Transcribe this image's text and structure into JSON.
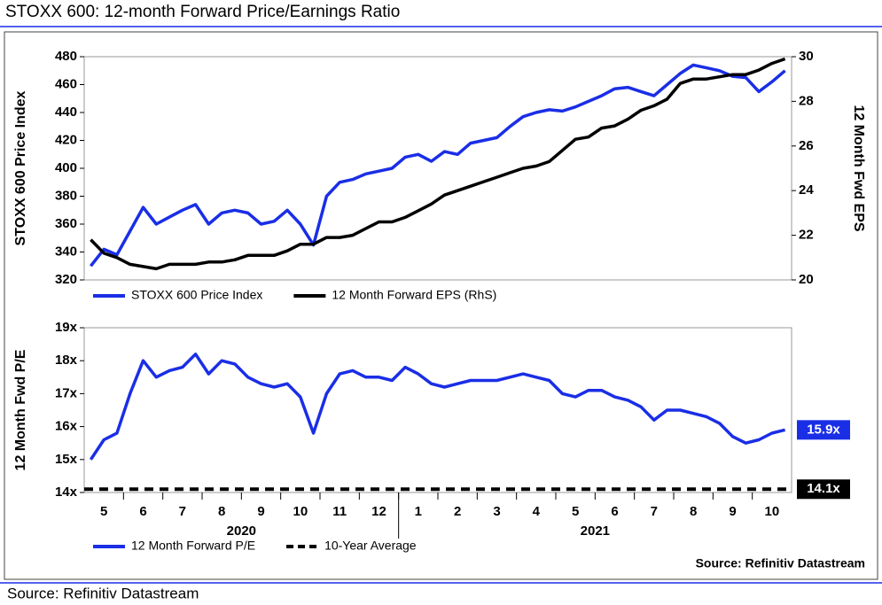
{
  "title": "STOXX 600: 12-month Forward Price/Earnings Ratio",
  "source": "Source: Refinitiv Datastream",
  "chart_data": [
    {
      "type": "line",
      "ylabel": "STOXX 600 Price Index",
      "y2label": "12 Month Fwd EPS",
      "ylim": [
        320,
        480
      ],
      "yticks": [
        320,
        340,
        360,
        380,
        400,
        420,
        440,
        460,
        480
      ],
      "y2lim": [
        20,
        30
      ],
      "y2ticks": [
        20,
        22,
        24,
        26,
        28,
        30
      ],
      "series": [
        {
          "name": "STOXX 600 Price Index",
          "color": "#1a2ee6",
          "values": [
            330,
            342,
            338,
            355,
            372,
            360,
            365,
            370,
            374,
            360,
            368,
            370,
            368,
            360,
            362,
            370,
            360,
            345,
            380,
            390,
            392,
            396,
            398,
            400,
            408,
            410,
            405,
            412,
            410,
            418,
            420,
            422,
            430,
            437,
            440,
            442,
            441,
            444,
            448,
            452,
            457,
            458,
            455,
            452,
            460,
            468,
            474,
            472,
            470,
            466,
            465,
            455,
            462,
            470
          ]
        },
        {
          "name": "12 Month Forward EPS (RhS)",
          "color": "#000000",
          "axis": "y2",
          "values": [
            21.8,
            21.2,
            21.0,
            20.7,
            20.6,
            20.5,
            20.7,
            20.7,
            20.7,
            20.8,
            20.8,
            20.9,
            21.1,
            21.1,
            21.1,
            21.3,
            21.6,
            21.6,
            21.9,
            21.9,
            22.0,
            22.3,
            22.6,
            22.6,
            22.8,
            23.1,
            23.4,
            23.8,
            24.0,
            24.2,
            24.4,
            24.6,
            24.8,
            25.0,
            25.1,
            25.3,
            25.8,
            26.3,
            26.4,
            26.8,
            26.9,
            27.2,
            27.6,
            27.8,
            28.1,
            28.8,
            29.0,
            29.0,
            29.1,
            29.2,
            29.2,
            29.4,
            29.7,
            29.9
          ]
        }
      ]
    },
    {
      "type": "line",
      "ylabel": "12 Month Fwd P/E",
      "ylim": [
        14,
        19
      ],
      "yticks": [
        {
          "value": 14,
          "label": "14x"
        },
        {
          "value": 15,
          "label": "15x"
        },
        {
          "value": 16,
          "label": "16x"
        },
        {
          "value": 17,
          "label": "17x"
        },
        {
          "value": 18,
          "label": "18x"
        },
        {
          "value": 19,
          "label": "19x"
        }
      ],
      "categories": [
        null,
        "5",
        null,
        null,
        "6",
        null,
        null,
        "7",
        null,
        null,
        "8",
        null,
        null,
        "9",
        null,
        null,
        "10",
        null,
        null,
        "11",
        null,
        null,
        "12",
        null,
        null,
        "1",
        null,
        null,
        "2",
        null,
        null,
        "3",
        null,
        null,
        "4",
        null,
        null,
        "5",
        null,
        null,
        "6",
        null,
        null,
        "7",
        null,
        null,
        "8",
        null,
        null,
        "9",
        null,
        null,
        "10",
        null
      ],
      "x_groups": [
        {
          "label": "2020",
          "span": 24
        },
        {
          "label": "2021",
          "span": 30
        }
      ],
      "series": [
        {
          "name": "12 Month Forward P/E",
          "color": "#1a2ee6",
          "values": [
            15.0,
            15.6,
            15.8,
            17.0,
            18.0,
            17.5,
            17.7,
            17.8,
            18.2,
            17.6,
            18.0,
            17.9,
            17.5,
            17.3,
            17.2,
            17.3,
            16.9,
            15.8,
            17.0,
            17.6,
            17.7,
            17.5,
            17.5,
            17.4,
            17.8,
            17.6,
            17.3,
            17.2,
            17.3,
            17.4,
            17.4,
            17.4,
            17.5,
            17.6,
            17.5,
            17.4,
            17.0,
            16.9,
            17.1,
            17.1,
            16.9,
            16.8,
            16.6,
            16.2,
            16.5,
            16.5,
            16.4,
            16.3,
            16.1,
            15.7,
            15.5,
            15.6,
            15.8,
            15.9
          ],
          "value_labels": [
            null,
            null,
            null,
            null,
            null,
            null,
            null,
            null,
            null,
            null,
            null,
            null,
            null,
            null,
            null,
            null,
            null,
            null,
            null,
            null,
            null,
            null,
            null,
            null,
            null,
            null,
            null,
            null,
            null,
            null,
            null,
            null,
            null,
            null,
            null,
            null,
            null,
            null,
            null,
            null,
            null,
            null,
            null,
            null,
            null,
            null,
            null,
            null,
            null,
            null,
            null,
            null,
            null,
            "15.9x"
          ]
        }
      ],
      "reference_line": {
        "name": "10-Year Average",
        "value": 14.1,
        "label": "14.1x",
        "color": "#000000"
      },
      "note": "Source: Refinitiv Datastream"
    }
  ]
}
